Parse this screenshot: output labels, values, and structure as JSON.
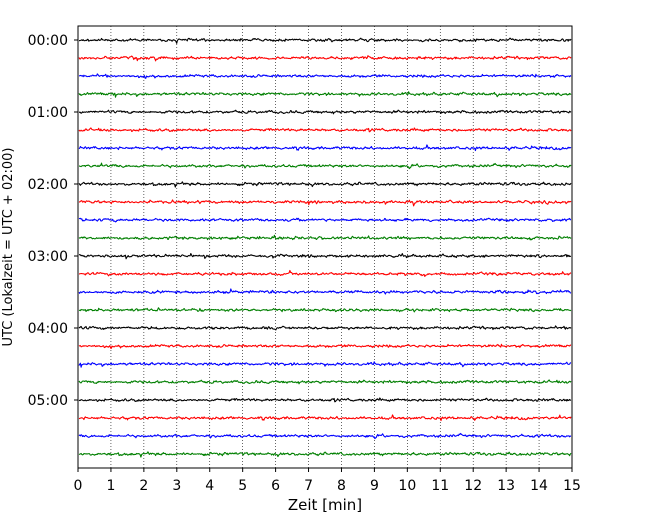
{
  "chart_data": {
    "type": "line",
    "title": "",
    "xlabel": "Zeit  [min]",
    "ylabel": "UTC (Lokalzeit = UTC + 02:00)",
    "xlim": [
      0,
      15
    ],
    "x_ticks": [
      "0",
      "1",
      "2",
      "3",
      "4",
      "5",
      "6",
      "7",
      "8",
      "9",
      "10",
      "11",
      "12",
      "13",
      "14",
      "15"
    ],
    "y_ticks": [
      "00:00",
      "01:00",
      "02:00",
      "03:00",
      "04:00",
      "05:00"
    ],
    "grid": "vertical dotted",
    "trace_interval_min": 15,
    "colors_cycle": [
      "#000000",
      "#ff0000",
      "#0000ff",
      "#007f00"
    ],
    "series": [
      {
        "start": "00:00",
        "color": "#000000"
      },
      {
        "start": "00:15",
        "color": "#ff0000"
      },
      {
        "start": "00:30",
        "color": "#0000ff"
      },
      {
        "start": "00:45",
        "color": "#007f00"
      },
      {
        "start": "01:00",
        "color": "#000000"
      },
      {
        "start": "01:15",
        "color": "#ff0000"
      },
      {
        "start": "01:30",
        "color": "#0000ff"
      },
      {
        "start": "01:45",
        "color": "#007f00"
      },
      {
        "start": "02:00",
        "color": "#000000"
      },
      {
        "start": "02:15",
        "color": "#ff0000"
      },
      {
        "start": "02:30",
        "color": "#0000ff"
      },
      {
        "start": "02:45",
        "color": "#007f00"
      },
      {
        "start": "03:00",
        "color": "#000000"
      },
      {
        "start": "03:15",
        "color": "#ff0000"
      },
      {
        "start": "03:30",
        "color": "#0000ff"
      },
      {
        "start": "03:45",
        "color": "#007f00"
      },
      {
        "start": "04:00",
        "color": "#000000"
      },
      {
        "start": "04:15",
        "color": "#ff0000"
      },
      {
        "start": "04:30",
        "color": "#0000ff"
      },
      {
        "start": "04:45",
        "color": "#007f00"
      },
      {
        "start": "05:00",
        "color": "#000000"
      },
      {
        "start": "05:15",
        "color": "#ff0000"
      },
      {
        "start": "05:30",
        "color": "#0000ff"
      },
      {
        "start": "05:45",
        "color": "#007f00"
      }
    ]
  }
}
